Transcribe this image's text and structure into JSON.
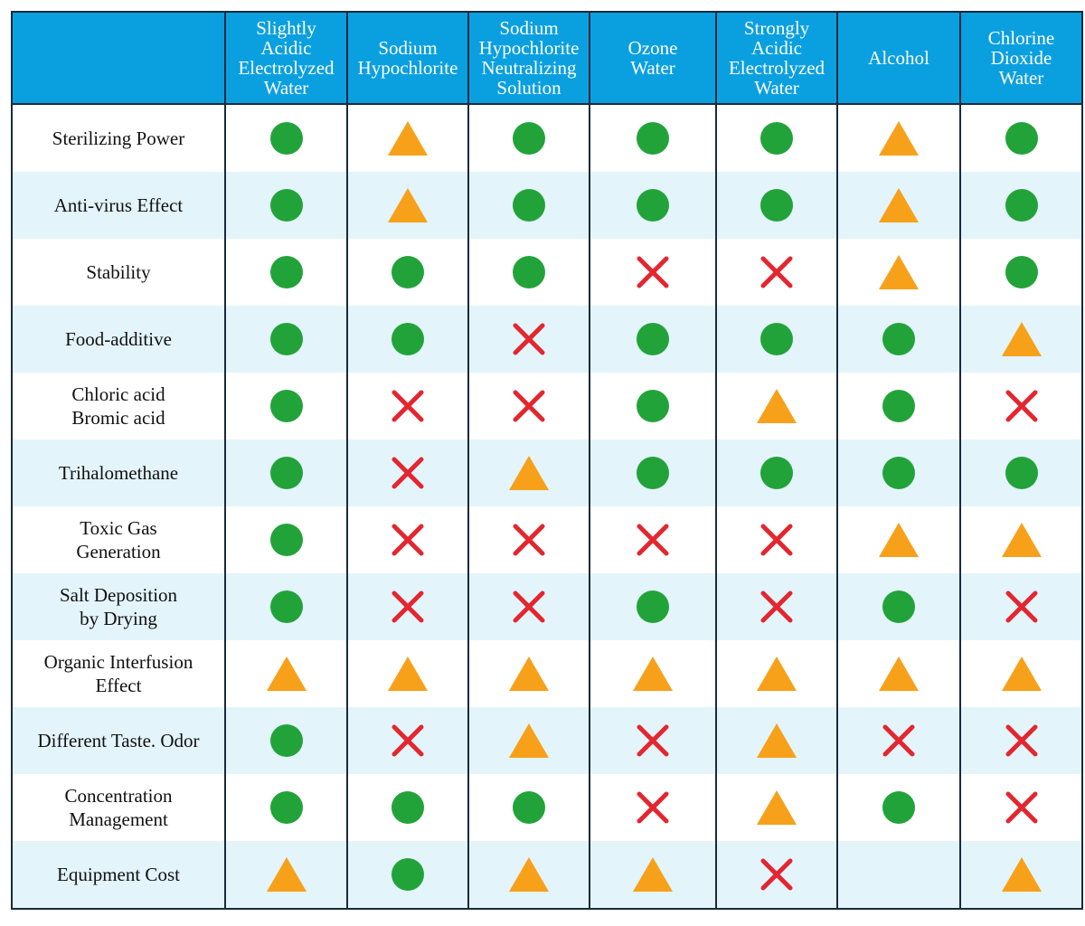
{
  "colors": {
    "header_bg": "#0aa0e0",
    "alt_row_bg": "#e3f4fb",
    "circle": "#22a33a",
    "triangle": "#f7a11a",
    "cross": "#e3262f"
  },
  "columns": [
    "Slightly\nAcidic\nElectrolyzed\nWater",
    "Sodium\nHypochlorite",
    "Sodium\nHypochlorite\nNeutralizing\nSolution",
    "Ozone\nWater",
    "Strongly\nAcidic\nElectrolyzed\nWater",
    "Alcohol",
    "Chlorine\nDioxide\nWater"
  ],
  "rows": [
    {
      "label": "Sterilizing Power",
      "marks": [
        "circle",
        "triangle",
        "circle",
        "circle",
        "circle",
        "triangle",
        "circle"
      ]
    },
    {
      "label": "Anti-virus Effect",
      "marks": [
        "circle",
        "triangle",
        "circle",
        "circle",
        "circle",
        "triangle",
        "circle"
      ]
    },
    {
      "label": "Stability",
      "marks": [
        "circle",
        "circle",
        "circle",
        "cross",
        "cross",
        "triangle",
        "circle"
      ]
    },
    {
      "label": "Food-additive",
      "marks": [
        "circle",
        "circle",
        "cross",
        "circle",
        "circle",
        "circle",
        "triangle"
      ]
    },
    {
      "label": "Chloric acid\nBromic acid",
      "marks": [
        "circle",
        "cross",
        "cross",
        "circle",
        "triangle",
        "circle",
        "cross"
      ]
    },
    {
      "label": "Trihalomethane",
      "marks": [
        "circle",
        "cross",
        "triangle",
        "circle",
        "circle",
        "circle",
        "circle"
      ]
    },
    {
      "label": "Toxic Gas\nGeneration",
      "marks": [
        "circle",
        "cross",
        "cross",
        "cross",
        "cross",
        "triangle",
        "triangle"
      ]
    },
    {
      "label": "Salt Deposition\nby Drying",
      "marks": [
        "circle",
        "cross",
        "cross",
        "circle",
        "cross",
        "circle",
        "cross"
      ]
    },
    {
      "label": "Organic Interfusion\nEffect",
      "marks": [
        "triangle",
        "triangle",
        "triangle",
        "triangle",
        "triangle",
        "triangle",
        "triangle"
      ]
    },
    {
      "label": "Different Taste. Odor",
      "marks": [
        "circle",
        "cross",
        "triangle",
        "cross",
        "triangle",
        "cross",
        "cross"
      ]
    },
    {
      "label": "Concentration\nManagement",
      "marks": [
        "circle",
        "circle",
        "circle",
        "cross",
        "triangle",
        "circle",
        "cross"
      ]
    },
    {
      "label": "Equipment Cost",
      "marks": [
        "triangle",
        "circle",
        "triangle",
        "triangle",
        "cross",
        "",
        "triangle"
      ]
    }
  ]
}
